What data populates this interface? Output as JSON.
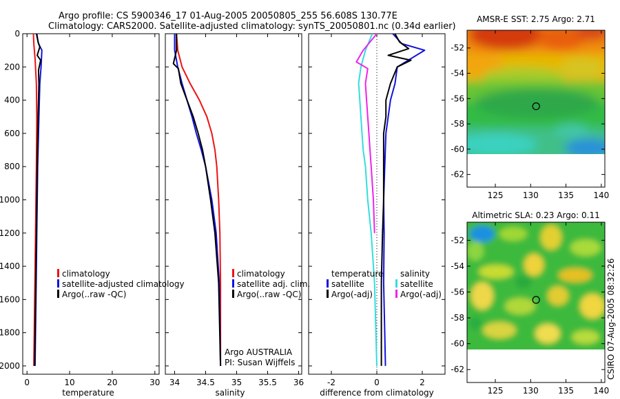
{
  "header": {
    "line1": "Argo profile: CS 5900346_17 01-Aug-2005 20050805_255 56.608S 130.77E",
    "line2": "Climatology: CARS2000. Satellite-adjusted climatology: synTS_20050801.nc (0.34d earlier)"
  },
  "side_label": "CSIRO 07-Aug-2005 08:32:26",
  "colors": {
    "climatology": "#ee1111",
    "satellite": "#1111dd",
    "argo": "#000000",
    "salinity_satellite": "#33dddd",
    "salinity_argo": "#ee22ee"
  },
  "chart_data": [
    {
      "type": "line",
      "xlabel": "temperature",
      "xlim": [
        -1,
        31
      ],
      "ylim": [
        2050,
        0
      ],
      "xticks": [
        0,
        10,
        20,
        30
      ],
      "yticks": [
        0,
        200,
        400,
        600,
        800,
        1000,
        1200,
        1400,
        1600,
        1800,
        2000
      ],
      "legend": [
        "climatology",
        "satellite-adjusted climatology",
        "Argo(..raw -QC)"
      ],
      "series": [
        {
          "key": "clim",
          "color": "#ee1111",
          "points": [
            [
              1.5,
              0
            ],
            [
              1.6,
              60
            ],
            [
              1.9,
              150
            ],
            [
              2.2,
              300
            ],
            [
              2.3,
              500
            ],
            [
              2.2,
              800
            ],
            [
              2.0,
              1200
            ],
            [
              1.8,
              1600
            ],
            [
              1.6,
              2000
            ]
          ]
        },
        {
          "key": "sat",
          "color": "#1111dd",
          "points": [
            [
              2.2,
              0
            ],
            [
              2.7,
              60
            ],
            [
              3.5,
              100
            ],
            [
              3.3,
              200
            ],
            [
              3.0,
              300
            ],
            [
              2.8,
              500
            ],
            [
              2.5,
              800
            ],
            [
              2.3,
              1200
            ],
            [
              2.1,
              1600
            ],
            [
              1.9,
              2000
            ]
          ]
        },
        {
          "key": "argo",
          "color": "#000000",
          "points": [
            [
              2.3,
              0
            ],
            [
              2.6,
              50
            ],
            [
              3.0,
              80
            ],
            [
              2.4,
              130
            ],
            [
              3.2,
              160
            ],
            [
              2.7,
              220
            ],
            [
              2.8,
              300
            ],
            [
              2.6,
              500
            ],
            [
              2.4,
              800
            ],
            [
              2.2,
              1200
            ],
            [
              2.0,
              1600
            ],
            [
              1.8,
              2000
            ]
          ]
        }
      ]
    },
    {
      "type": "line",
      "xlabel": "salinity",
      "xlim": [
        33.85,
        36.05
      ],
      "ylim": [
        2050,
        0
      ],
      "xticks": [
        34,
        34.5,
        35,
        35.5,
        36
      ],
      "legend": [
        "climatology",
        "satellite adj. clim.",
        "Argo(..raw -QC)"
      ],
      "annotation": [
        "Argo AUSTRALIA",
        "PI: Susan Wijffels"
      ],
      "series": [
        {
          "key": "clim",
          "color": "#ee1111",
          "points": [
            [
              34.03,
              0
            ],
            [
              34.05,
              100
            ],
            [
              34.12,
              200
            ],
            [
              34.25,
              300
            ],
            [
              34.4,
              400
            ],
            [
              34.52,
              500
            ],
            [
              34.6,
              600
            ],
            [
              34.65,
              700
            ],
            [
              34.68,
              800
            ],
            [
              34.71,
              1000
            ],
            [
              34.73,
              1200
            ],
            [
              34.74,
              1500
            ],
            [
              34.74,
              2000
            ]
          ]
        },
        {
          "key": "sat",
          "color": "#1111dd",
          "points": [
            [
              34.0,
              0
            ],
            [
              34.0,
              100
            ],
            [
              34.05,
              200
            ],
            [
              34.12,
              300
            ],
            [
              34.2,
              400
            ],
            [
              34.28,
              500
            ],
            [
              34.35,
              600
            ],
            [
              34.43,
              700
            ],
            [
              34.5,
              800
            ],
            [
              34.6,
              1000
            ],
            [
              34.67,
              1200
            ],
            [
              34.72,
              1500
            ],
            [
              34.74,
              2000
            ]
          ]
        },
        {
          "key": "argo",
          "color": "#000000",
          "points": [
            [
              34.03,
              0
            ],
            [
              34.03,
              100
            ],
            [
              33.98,
              180
            ],
            [
              34.06,
              210
            ],
            [
              34.1,
              300
            ],
            [
              34.2,
              400
            ],
            [
              34.3,
              500
            ],
            [
              34.38,
              600
            ],
            [
              34.45,
              700
            ],
            [
              34.5,
              800
            ],
            [
              34.58,
              1000
            ],
            [
              34.65,
              1200
            ],
            [
              34.71,
              1500
            ],
            [
              34.74,
              2000
            ]
          ]
        }
      ]
    },
    {
      "type": "line",
      "xlabel": "difference from climatology",
      "xlim": [
        -3,
        3
      ],
      "ylim": [
        2050,
        0
      ],
      "xticks": [
        -2,
        0,
        2
      ],
      "legend_left_title": "temperature",
      "legend_left": [
        "satellite",
        "Argo(-adj)"
      ],
      "legend_right_title": "salinity",
      "legend_right": [
        "satellite",
        "Argo(-adj)"
      ],
      "series": [
        {
          "key": "t_sat",
          "color": "#1111dd",
          "points": [
            [
              0.7,
              0
            ],
            [
              1.1,
              60
            ],
            [
              2.1,
              100
            ],
            [
              0.9,
              200
            ],
            [
              0.8,
              300
            ],
            [
              0.6,
              400
            ],
            [
              0.5,
              500
            ],
            [
              0.4,
              600
            ],
            [
              0.35,
              800
            ],
            [
              0.3,
              1000
            ],
            [
              0.32,
              1200
            ],
            [
              0.3,
              1500
            ],
            [
              0.35,
              1800
            ],
            [
              0.38,
              2000
            ]
          ]
        },
        {
          "key": "t_argo",
          "color": "#000000",
          "points": [
            [
              0.8,
              0
            ],
            [
              1.0,
              50
            ],
            [
              1.4,
              90
            ],
            [
              0.5,
              130
            ],
            [
              1.5,
              160
            ],
            [
              0.9,
              200
            ],
            [
              0.6,
              300
            ],
            [
              0.4,
              400
            ],
            [
              0.4,
              500
            ],
            [
              0.3,
              600
            ],
            [
              0.3,
              800
            ],
            [
              0.3,
              1000
            ],
            [
              0.25,
              1200
            ],
            [
              0.2,
              1500
            ],
            [
              0.2,
              2000
            ]
          ]
        },
        {
          "key": "s_sat",
          "color": "#33dddd",
          "points": [
            [
              -0.2,
              0
            ],
            [
              -0.5,
              100
            ],
            [
              -0.7,
              200
            ],
            [
              -0.8,
              300
            ],
            [
              -0.75,
              400
            ],
            [
              -0.7,
              500
            ],
            [
              -0.65,
              600
            ],
            [
              -0.6,
              700
            ],
            [
              -0.5,
              800
            ],
            [
              -0.4,
              1000
            ],
            [
              -0.25,
              1200
            ],
            [
              -0.1,
              1500
            ],
            [
              0.0,
              2000
            ]
          ]
        },
        {
          "key": "s_argo",
          "color": "#ee22ee",
          "points": [
            [
              0.0,
              0
            ],
            [
              -0.6,
              100
            ],
            [
              -0.9,
              170
            ],
            [
              -0.4,
              210
            ],
            [
              -0.5,
              300
            ],
            [
              -0.45,
              400
            ],
            [
              -0.4,
              500
            ],
            [
              -0.35,
              600
            ],
            [
              -0.3,
              700
            ],
            [
              -0.25,
              800
            ],
            [
              -0.2,
              900
            ],
            [
              -0.15,
              1000
            ],
            [
              -0.1,
              1200
            ]
          ]
        }
      ]
    },
    {
      "type": "heatmap",
      "title": "AMSR-E SST: 2.75  Argo: 2.71",
      "xlim": [
        121,
        140.5
      ],
      "ylim": [
        -63,
        -50.6
      ],
      "xticks": [
        125,
        130,
        135,
        140
      ],
      "yticks": [
        -52,
        -54,
        -56,
        -58,
        -60,
        -62
      ],
      "data_extent_lat": [
        -60,
        -50.6
      ],
      "marker": {
        "lon": 130.77,
        "lat": -56.608
      }
    },
    {
      "type": "heatmap",
      "title": "Altimetric SLA: 0.23  Argo: 0.11",
      "xlim": [
        121,
        140.5
      ],
      "ylim": [
        -63,
        -50.6
      ],
      "xticks": [
        125,
        130,
        135,
        140
      ],
      "yticks": [
        -52,
        -54,
        -56,
        -58,
        -60,
        -62
      ],
      "data_extent_lat": [
        -60,
        -50.6
      ],
      "marker": {
        "lon": 130.77,
        "lat": -56.608
      }
    }
  ]
}
